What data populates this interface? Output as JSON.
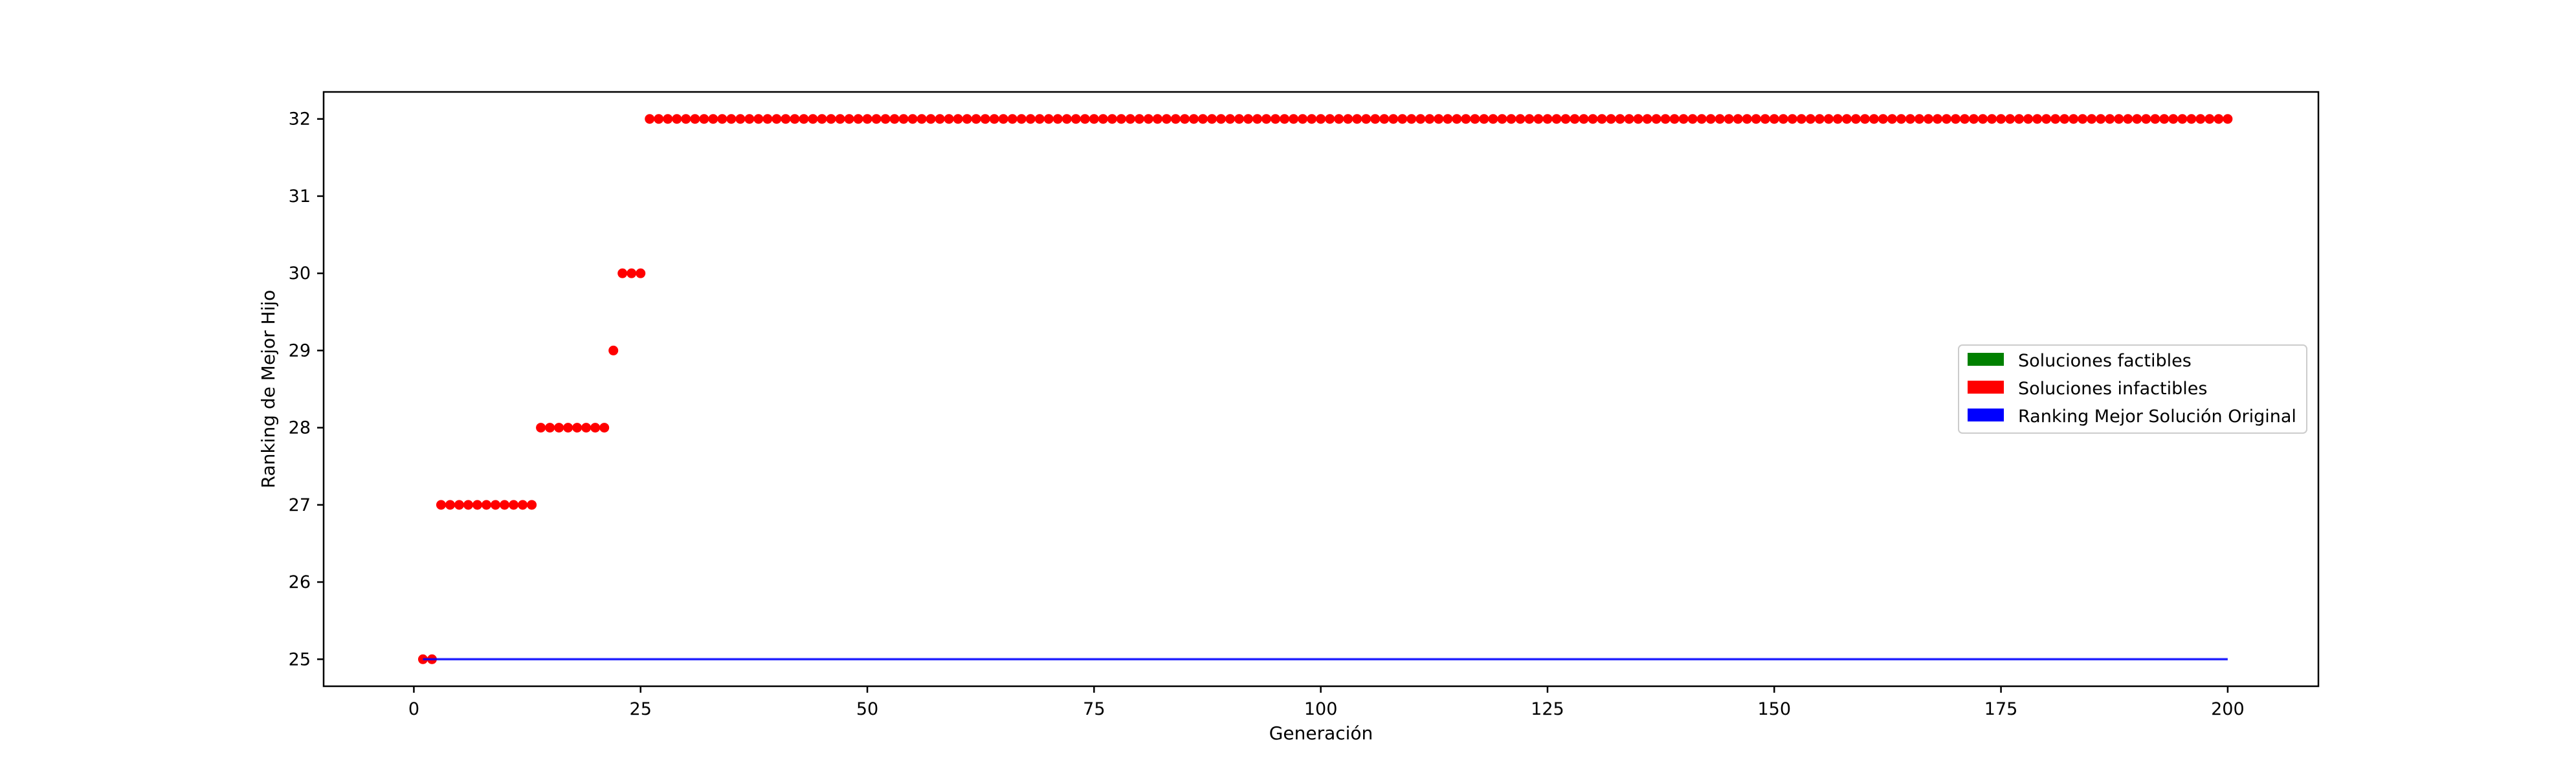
{
  "chart_data": {
    "type": "scatter",
    "title": "",
    "xlabel": "Generación",
    "ylabel": "Ranking de Mejor Hijo",
    "xlim": [
      -9.95,
      210
    ],
    "ylim": [
      24.65,
      32.35
    ],
    "xticks": [
      0,
      25,
      50,
      75,
      100,
      125,
      150,
      175,
      200
    ],
    "yticks": [
      25,
      26,
      27,
      28,
      29,
      30,
      31,
      32
    ],
    "grid": false,
    "legend_position": "center-right",
    "legend": [
      {
        "label": "Soluciones factibles",
        "color": "#008000"
      },
      {
        "label": "Soluciones infactibles",
        "color": "#ff0000"
      },
      {
        "label": "Ranking Mejor Solución Original",
        "color": "#0000ff"
      }
    ],
    "series": [
      {
        "name": "Soluciones infactibles",
        "kind": "scatter",
        "color": "#ff0000",
        "points": [
          {
            "x_from": 1,
            "x_to": 2,
            "y": 25
          },
          {
            "x_from": 3,
            "x_to": 13,
            "y": 27
          },
          {
            "x_from": 14,
            "x_to": 21,
            "y": 28
          },
          {
            "x_from": 22,
            "x_to": 22,
            "y": 29
          },
          {
            "x_from": 23,
            "x_to": 25,
            "y": 30
          },
          {
            "x_from": 26,
            "x_to": 200,
            "y": 32
          }
        ]
      },
      {
        "name": "Ranking Mejor Solución Original",
        "kind": "line",
        "color": "#0000ff",
        "x": [
          1,
          200
        ],
        "y": [
          25,
          25
        ]
      }
    ]
  }
}
